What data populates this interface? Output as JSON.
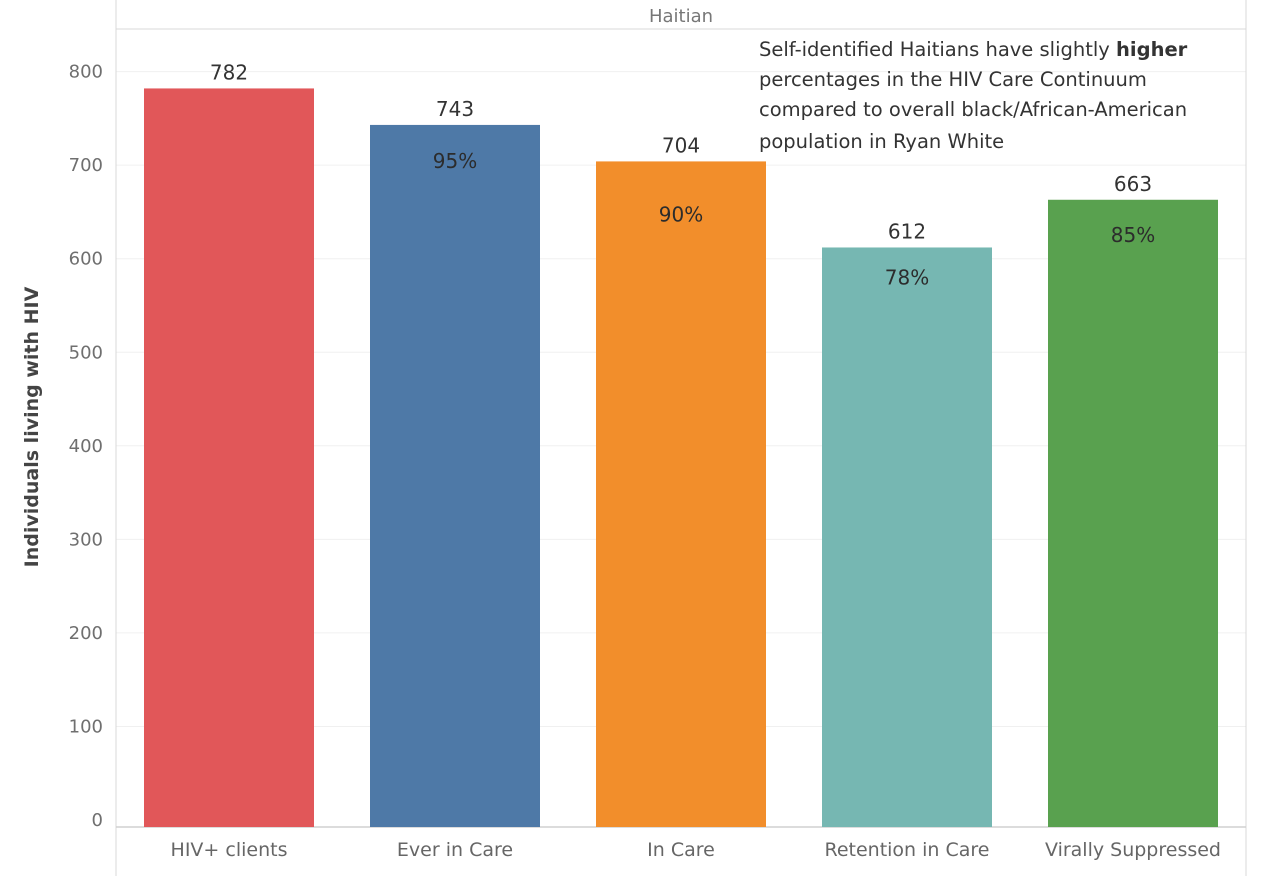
{
  "panel_header": "Haitian",
  "annotation": {
    "line1_before": "Self-identified Haitians have slightly ",
    "line1_bold": "higher",
    "line2": "percentages in the HIV Care Continuum",
    "line3": "compared to overall black/African-American",
    "line4": "population in Ryan White"
  },
  "colors": {
    "hiv_clients": "#e15759",
    "ever_in_care": "#4e79a7",
    "in_care": "#f28e2b",
    "retention": "#76b7b2",
    "suppressed": "#59a14f"
  },
  "chart_data": {
    "type": "bar",
    "title": "",
    "xlabel": "",
    "ylabel": "Individuals living with HIV",
    "ylim": [
      0,
      850
    ],
    "yticks": [
      0,
      100,
      200,
      300,
      400,
      500,
      600,
      700,
      800
    ],
    "grid": true,
    "categories": [
      "HIV+ clients",
      "Ever in Care",
      "In Care",
      "Retention in Care",
      "Virally Suppressed"
    ],
    "values": [
      782,
      743,
      704,
      612,
      663
    ],
    "value_labels": [
      "782",
      "743",
      "704",
      "612",
      "663"
    ],
    "percent_labels": [
      "",
      "95%",
      "90%",
      "78%",
      "85%"
    ],
    "bar_colors": [
      "#e15759",
      "#4e79a7",
      "#f28e2b",
      "#76b7b2",
      "#59a14f"
    ]
  }
}
